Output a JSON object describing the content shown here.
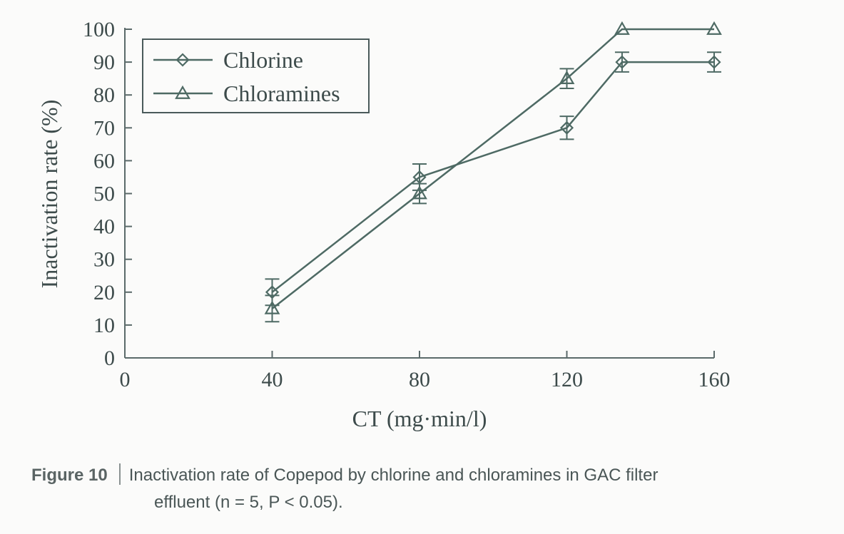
{
  "chart_data": {
    "type": "line",
    "xlabel": "CT (mg·min/l)",
    "ylabel": "Inactivation rate (%)",
    "xlim": [
      0,
      160
    ],
    "ylim": [
      0,
      100
    ],
    "x_ticks": [
      "0",
      "40",
      "80",
      "120",
      "160"
    ],
    "y_ticks": [
      "0",
      "10",
      "20",
      "30",
      "40",
      "50",
      "60",
      "70",
      "80",
      "90",
      "100"
    ],
    "grid": false,
    "legend_position": "top-left",
    "series": [
      {
        "name": "Chlorine",
        "marker": "diamond",
        "x": [
          40,
          80,
          120,
          135,
          160
        ],
        "y": [
          20,
          55,
          70,
          90,
          90
        ],
        "error": [
          4,
          4,
          3.5,
          3,
          3
        ]
      },
      {
        "name": "Chloramines",
        "marker": "triangle",
        "x": [
          40,
          80,
          120,
          135,
          160
        ],
        "y": [
          15,
          50,
          85,
          100,
          100
        ],
        "error": [
          4,
          3,
          3,
          0,
          0
        ]
      }
    ],
    "colors": {
      "line": "#4e6a64",
      "axis": "#5b6a6a"
    }
  },
  "caption": {
    "label": "Figure 10",
    "text_line1": "Inactivation rate of Copepod by chlorine and chloramines in GAC filter",
    "text_line2": "effluent (n = 5, P < 0.05)."
  }
}
